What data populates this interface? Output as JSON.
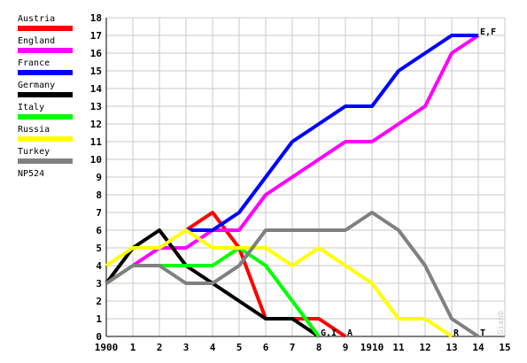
{
  "chart_data": {
    "type": "line",
    "x_tick_labels": [
      "1900",
      "1",
      "2",
      "3",
      "4",
      "5",
      "6",
      "7",
      "8",
      "9",
      "1910",
      "11",
      "12",
      "13",
      "14",
      "15"
    ],
    "x": [
      0,
      1,
      2,
      3,
      4,
      5,
      6,
      7,
      8,
      9,
      10,
      11,
      12,
      13,
      14,
      15
    ],
    "xlim": [
      0,
      15
    ],
    "ylim": [
      0,
      18
    ],
    "y_ticks": [
      0,
      1,
      2,
      3,
      4,
      5,
      6,
      7,
      8,
      9,
      10,
      11,
      12,
      13,
      14,
      15,
      16,
      17,
      18
    ],
    "grid": true,
    "legend_position": "left",
    "series": [
      {
        "name": "Austria",
        "color": "#ff0000",
        "points": [
          [
            3,
            6
          ],
          [
            4,
            7
          ],
          [
            5,
            5
          ],
          [
            6,
            1
          ],
          [
            7,
            1
          ],
          [
            8,
            1
          ],
          [
            9,
            0
          ]
        ]
      },
      {
        "name": "England",
        "color": "#ff00ff",
        "points": [
          [
            1,
            4
          ],
          [
            2,
            5
          ],
          [
            3,
            5
          ],
          [
            4,
            6
          ],
          [
            5,
            6
          ],
          [
            6,
            8
          ],
          [
            7,
            9
          ],
          [
            8,
            10
          ],
          [
            9,
            11
          ],
          [
            10,
            11
          ],
          [
            11,
            12
          ],
          [
            12,
            13
          ],
          [
            13,
            16
          ],
          [
            14,
            17
          ]
        ]
      },
      {
        "name": "France",
        "color": "#0000ff",
        "points": [
          [
            3,
            6
          ],
          [
            4,
            6
          ],
          [
            5,
            7
          ],
          [
            6,
            9
          ],
          [
            7,
            11
          ],
          [
            8,
            12
          ],
          [
            9,
            13
          ],
          [
            10,
            13
          ],
          [
            11,
            15
          ],
          [
            12,
            16
          ],
          [
            13,
            17
          ],
          [
            14,
            17
          ]
        ]
      },
      {
        "name": "Germany",
        "color": "#000000",
        "points": [
          [
            0,
            3
          ],
          [
            1,
            5
          ],
          [
            2,
            6
          ],
          [
            3,
            4
          ],
          [
            4,
            3
          ],
          [
            5,
            2
          ],
          [
            6,
            1
          ],
          [
            7,
            1
          ],
          [
            8,
            0
          ]
        ]
      },
      {
        "name": "Italy",
        "color": "#00ff00",
        "points": [
          [
            0,
            3
          ],
          [
            1,
            4
          ],
          [
            2,
            4
          ],
          [
            3,
            4
          ],
          [
            4,
            4
          ],
          [
            5,
            5
          ],
          [
            6,
            4
          ],
          [
            7,
            2
          ],
          [
            8,
            0
          ]
        ]
      },
      {
        "name": "Russia",
        "color": "#ffff00",
        "points": [
          [
            0,
            4
          ],
          [
            1,
            5
          ],
          [
            2,
            5
          ],
          [
            3,
            6
          ],
          [
            4,
            5
          ],
          [
            5,
            5
          ],
          [
            6,
            5
          ],
          [
            7,
            4
          ],
          [
            8,
            5
          ],
          [
            9,
            4
          ],
          [
            10,
            3
          ],
          [
            11,
            1
          ],
          [
            12,
            1
          ],
          [
            13,
            0
          ]
        ]
      },
      {
        "name": "Turkey",
        "color": "#808080",
        "points": [
          [
            0,
            3
          ],
          [
            1,
            4
          ],
          [
            2,
            4
          ],
          [
            3,
            3
          ],
          [
            4,
            3
          ],
          [
            5,
            4
          ],
          [
            6,
            6
          ],
          [
            7,
            6
          ],
          [
            8,
            6
          ],
          [
            9,
            6
          ],
          [
            10,
            7
          ],
          [
            11,
            6
          ],
          [
            12,
            4
          ],
          [
            13,
            1
          ],
          [
            14,
            0
          ]
        ]
      }
    ],
    "legend_note": "NP524",
    "end_labels": [
      {
        "text": "E,F",
        "x": 14,
        "y": 17
      },
      {
        "text": "G,I",
        "x": 8,
        "y": 0
      },
      {
        "text": "A",
        "x": 9,
        "y": 0
      },
      {
        "text": "R",
        "x": 13,
        "y": 0
      },
      {
        "text": "T",
        "x": 14,
        "y": 0
      }
    ],
    "watermark": "Gianb"
  }
}
